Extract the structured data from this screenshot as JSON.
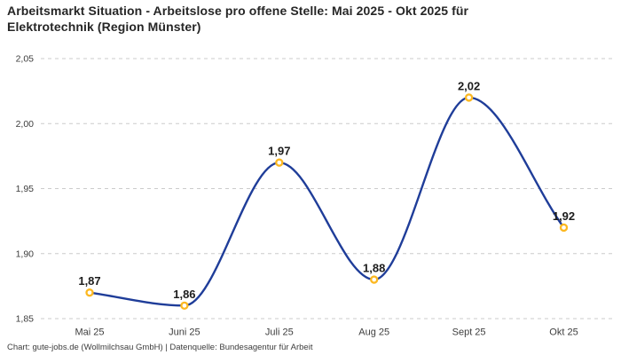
{
  "header": {
    "title": "Arbeitsmarkt Situation - Arbeitslose pro offene Stelle: Mai 2025 - Okt 2025 für\nElektrotechnik (Region Münster)"
  },
  "footer": {
    "text": "Chart: gute-jobs.de (Wollmilchsau GmbH) | Datenquelle: Bundesagentur für Arbeit"
  },
  "colors": {
    "background": "#ffffff",
    "title_text": "#262626",
    "line": "#1f3d99",
    "marker_stroke": "#fcb821",
    "marker_fill": "#ffffff",
    "grid": "#cbcbcb",
    "axis_text": "#3d3d3d",
    "data_label_text": "#1c1c1c"
  },
  "chart_data": {
    "type": "line",
    "title": "Arbeitsmarkt Situation - Arbeitslose pro offene Stelle: Mai 2025 - Okt 2025 für Elektrotechnik (Region Münster)",
    "categories": [
      "Mai 25",
      "Juni 25",
      "Juli 25",
      "Aug 25",
      "Sept 25",
      "Okt 25"
    ],
    "values": [
      1.87,
      1.86,
      1.97,
      1.88,
      2.02,
      1.92
    ],
    "value_labels": [
      "1,87",
      "1,86",
      "1,97",
      "1,88",
      "2,02",
      "1,92"
    ],
    "xlabel": "",
    "ylabel": "",
    "ylim": [
      1.85,
      2.05
    ],
    "yticks": [
      2.05,
      2.0,
      1.95,
      1.9,
      1.85
    ],
    "ytick_labels": [
      "2,05",
      "2,00",
      "1,95",
      "1,90",
      "1,85"
    ],
    "grid": "horizontal-dashed",
    "legend": "none",
    "curve": "monotone",
    "marker": "hollow-circle"
  }
}
